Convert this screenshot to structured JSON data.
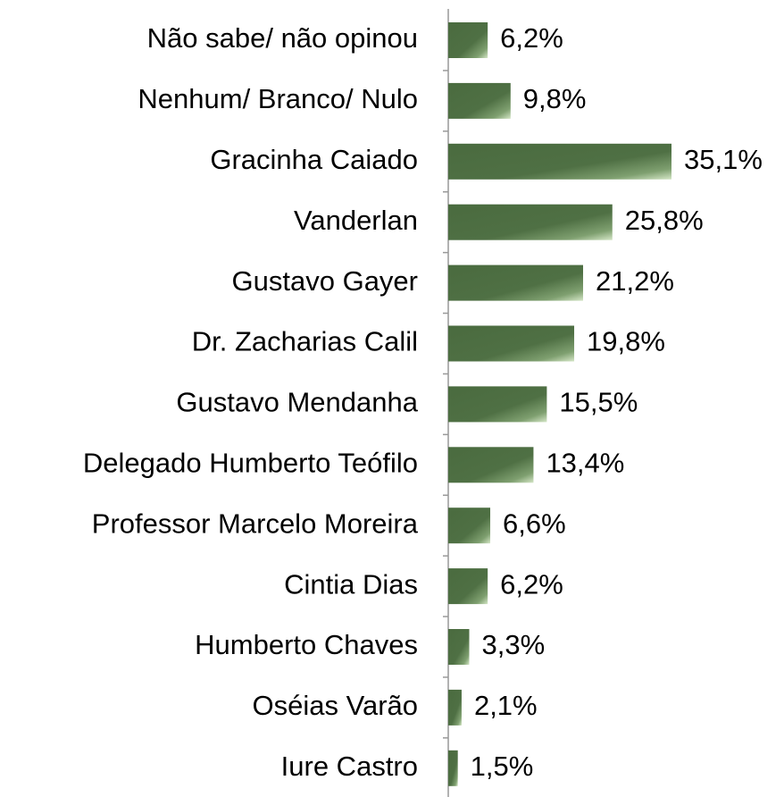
{
  "chart_data": {
    "type": "bar",
    "orientation": "horizontal",
    "categories": [
      "Não sabe/ não opinou",
      "Nenhum/ Branco/ Nulo",
      "Gracinha Caiado",
      "Vanderlan",
      "Gustavo Gayer",
      "Dr. Zacharias Calil",
      "Gustavo Mendanha",
      "Delegado Humberto Teófilo",
      "Professor Marcelo Moreira",
      "Cintia Dias",
      "Humberto Chaves",
      "Oséias Varão",
      "Iure Castro"
    ],
    "values": [
      6.2,
      9.8,
      35.1,
      25.8,
      21.2,
      19.8,
      15.5,
      13.4,
      6.6,
      6.2,
      3.3,
      2.1,
      1.5
    ],
    "value_labels": [
      "6,2%",
      "9,8%",
      "35,1%",
      "25,8%",
      "21,2%",
      "19,8%",
      "15,5%",
      "13,4%",
      "6,6%",
      "6,2%",
      "3,3%",
      "2,1%",
      "1,5%"
    ],
    "color": "#4a6b3f"
  }
}
